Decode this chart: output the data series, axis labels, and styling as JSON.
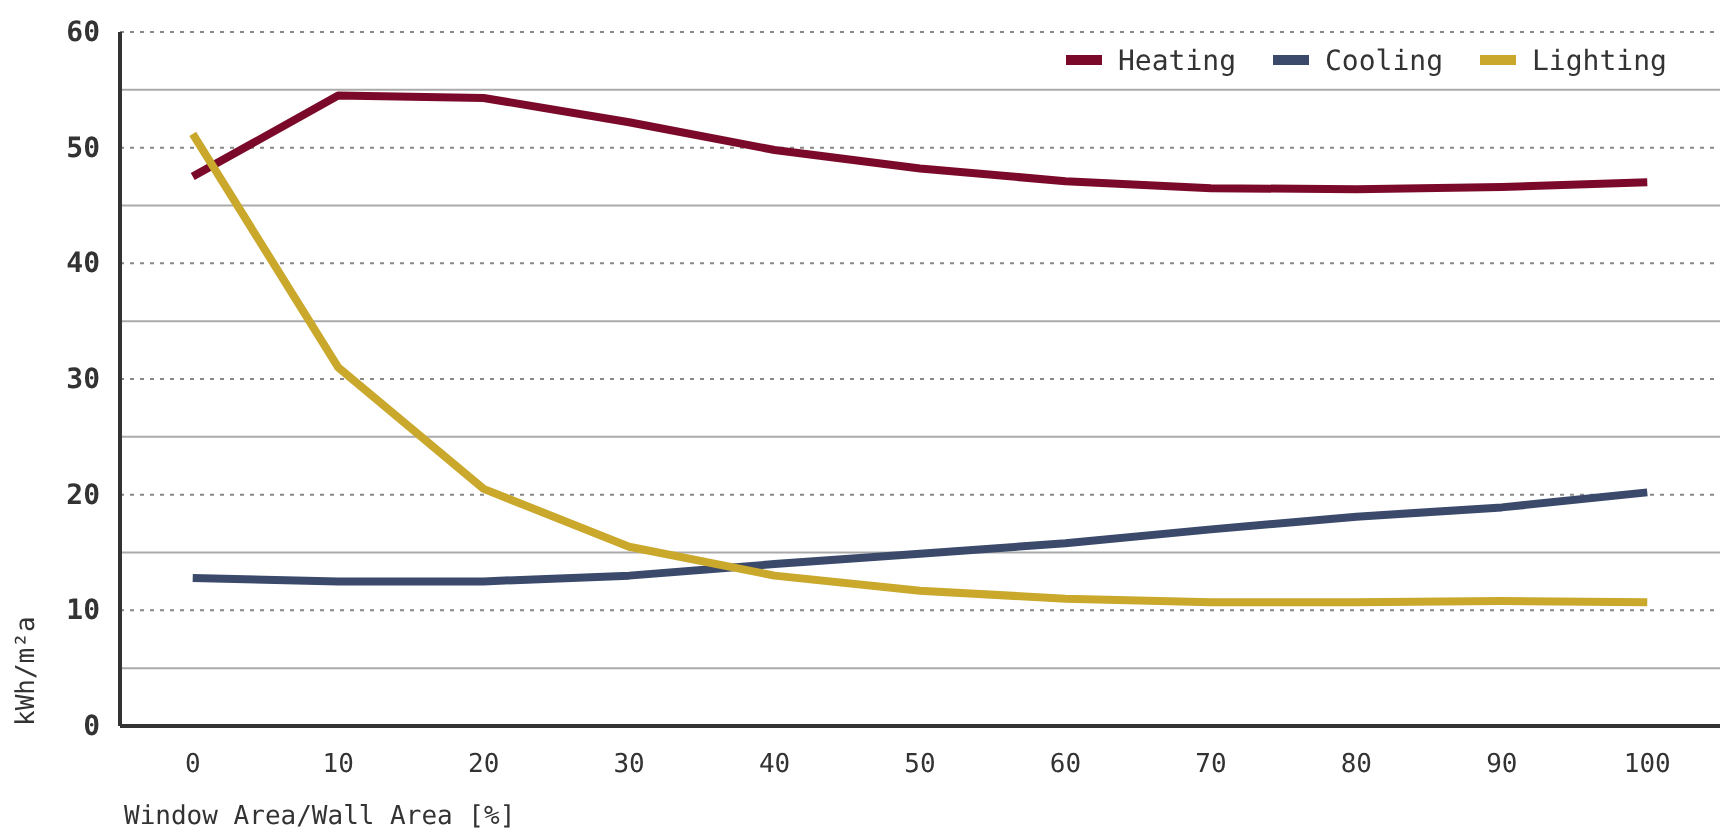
{
  "chart_data": {
    "type": "line",
    "xlabel": "Window Area/Wall Area [%]",
    "ylabel": "kWh/m²a",
    "x": [
      0,
      10,
      20,
      30,
      40,
      50,
      60,
      70,
      80,
      90,
      100
    ],
    "xlim": [
      -5,
      105
    ],
    "xticks": [
      0,
      10,
      20,
      30,
      40,
      50,
      60,
      70,
      80,
      90,
      100
    ],
    "ylim": [
      0,
      60
    ],
    "yticks": [
      0,
      {
        "value": 5,
        "label": null
      },
      10,
      {
        "value": 15,
        "label": null
      },
      20,
      {
        "value": 25,
        "label": null
      },
      30,
      {
        "value": 35,
        "label": null
      },
      40,
      {
        "value": 45,
        "label": null
      },
      50,
      {
        "value": 55,
        "label": null
      },
      60
    ],
    "grid": "y",
    "legend": "top right",
    "line_style": "solid",
    "marker": "none",
    "series": [
      {
        "name": "Heating",
        "color": "#7b0a2a",
        "values": [
          47.5,
          54.5,
          54.3,
          52.2,
          49.8,
          48.2,
          47.1,
          46.5,
          46.4,
          46.6,
          47.0
        ]
      },
      {
        "name": "Cooling",
        "color": "#3b4a6b",
        "values": [
          12.8,
          12.5,
          12.5,
          13.0,
          14.0,
          14.9,
          15.8,
          17.0,
          18.1,
          18.9,
          20.2
        ]
      },
      {
        "name": "Lighting",
        "color": "#c9a82c",
        "values": [
          51.2,
          31.0,
          20.5,
          15.5,
          13.0,
          11.7,
          11.0,
          10.7,
          10.7,
          10.8,
          10.7
        ]
      }
    ]
  }
}
